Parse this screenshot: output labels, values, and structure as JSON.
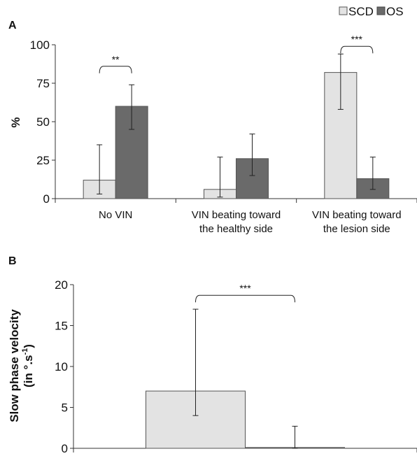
{
  "legend": {
    "items": [
      {
        "label": "SCD",
        "color": "#e3e3e3"
      },
      {
        "label": "OS",
        "color": "#6a6a6a"
      }
    ]
  },
  "chart_data": [
    {
      "panel": "A",
      "type": "bar",
      "ylabel": "%",
      "ylim": [
        0,
        100
      ],
      "yticks": [
        0,
        25,
        50,
        75,
        100
      ],
      "categories": [
        "No VIN",
        "VIN beating toward the healthy side",
        "VIN beating toward the lesion side"
      ],
      "category_lines": [
        [
          "No VIN"
        ],
        [
          "VIN beating toward",
          "the healthy side"
        ],
        [
          "VIN beating toward",
          "the lesion side"
        ]
      ],
      "series": [
        {
          "name": "SCD",
          "color": "#e3e3e3",
          "values": [
            12,
            6,
            82
          ],
          "err_low": [
            3,
            1,
            58
          ],
          "err_high": [
            35,
            27,
            94
          ]
        },
        {
          "name": "OS",
          "color": "#6a6a6a",
          "values": [
            60,
            26,
            13
          ],
          "err_low": [
            45,
            15,
            6
          ],
          "err_high": [
            74,
            42,
            27
          ]
        }
      ],
      "significance": [
        {
          "category": 0,
          "label": "**",
          "y": 86
        },
        {
          "category": 2,
          "label": "***",
          "y": 99
        }
      ]
    },
    {
      "panel": "B",
      "type": "bar",
      "ylabel": "Slow phase velocity",
      "ylabel_line2": "(in °.s",
      "ylabel_sup": "-1",
      "ylabel_close": ")",
      "ylim": [
        0,
        20
      ],
      "yticks": [
        0,
        5,
        10,
        15,
        20
      ],
      "categories": [
        ""
      ],
      "series": [
        {
          "name": "SCD",
          "color": "#e3e3e3",
          "values": [
            7
          ],
          "err_low": [
            4
          ],
          "err_high": [
            17
          ]
        },
        {
          "name": "OS",
          "color": "#6a6a6a",
          "values": [
            0.1
          ],
          "err_low": [
            0
          ],
          "err_high": [
            2.7
          ]
        }
      ],
      "significance": [
        {
          "category": 0,
          "label": "***",
          "y": 18.7
        }
      ]
    }
  ]
}
